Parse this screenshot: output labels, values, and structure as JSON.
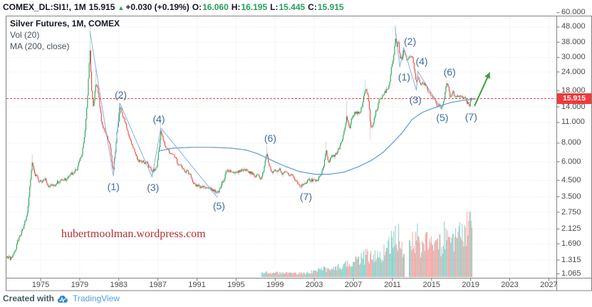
{
  "header": {
    "symbol": "COMEX_DL:SI1!,",
    "interval": "1M",
    "last": "15.915",
    "direction_icon": "▲",
    "change": "+0.030 (+0.19%)",
    "open_label": "O:",
    "open": "16.060",
    "high_label": "H:",
    "high": "16.195",
    "low_label": "L:",
    "low": "15.445",
    "close_label": "C:",
    "close": "15.915"
  },
  "legend": {
    "title": "Silver Futures, 1M, COMEX",
    "indicator_volume": "Vol (20)",
    "indicator_ma": "MA (200, close)"
  },
  "watermark": "hubertmoolman.wordpress.com",
  "attribution": {
    "prefix": "Created with",
    "brand": "TradingView"
  },
  "price_axis_badge": "15.915",
  "colors": {
    "up": "#26a152",
    "down": "#e64a45",
    "up_wick": "#7fc49b",
    "down_wick": "#f0a5a2",
    "volume_up": "#26a69a",
    "volume_down": "#ef5350",
    "ma_line": "#5b9bd4",
    "trend_line": "#8ab0dd",
    "wave_label": "#3e6d9c",
    "price_line": "#ef3a3e",
    "arrow": "#3f9e3c",
    "grid": "#dde9f3",
    "frame": "#828282"
  },
  "chart_data": {
    "type": "candlestick",
    "title": "Silver Futures, 1M, COMEX",
    "scale": "log",
    "x_domain": [
      1971.5,
      2027.7
    ],
    "y_domain": [
      1.0,
      56.6
    ],
    "x_ticks": [
      1975,
      1979,
      1983,
      1987,
      1991,
      1995,
      1999,
      2003,
      2007,
      2011,
      2015,
      2019,
      2023,
      2027
    ],
    "y_ticks": [
      60,
      48,
      38,
      30,
      24,
      18,
      14,
      11,
      8,
      6,
      4.5,
      3.5,
      2.75,
      2.125,
      1.69,
      1.315,
      1.065
    ],
    "y_tick_labels": [
      "60.000",
      "48.000",
      "38.000",
      "30.000",
      "24.000",
      "18.000",
      "14.000",
      "11.000",
      "8.000",
      "6.000",
      "4.500",
      "3.500",
      "2.750",
      "2.125",
      "1.690",
      "1.315",
      "1.065"
    ],
    "start_year": 1971.55,
    "end_year": 2019.13,
    "current_price": 15.915,
    "last_candle": {
      "o": 16.06,
      "h": 16.195,
      "l": 15.445,
      "c": 15.915
    },
    "anchors": [
      [
        1971.4,
        1.38
      ],
      [
        1971.9,
        1.32
      ],
      [
        1972.4,
        1.6
      ],
      [
        1973.0,
        1.98
      ],
      [
        1973.6,
        2.6
      ],
      [
        1974.15,
        5.9
      ],
      [
        1974.5,
        4.9
      ],
      [
        1974.9,
        4.35
      ],
      [
        1975.4,
        4.5
      ],
      [
        1975.9,
        4.2
      ],
      [
        1976.4,
        4.3
      ],
      [
        1977.0,
        4.45
      ],
      [
        1977.6,
        4.6
      ],
      [
        1978.2,
        5.0
      ],
      [
        1978.8,
        5.6
      ],
      [
        1979.2,
        6.9
      ],
      [
        1979.5,
        8.8
      ],
      [
        1979.75,
        14
      ],
      [
        1979.95,
        26
      ],
      [
        1980.04,
        36
      ],
      [
        1980.2,
        19
      ],
      [
        1980.4,
        13.5
      ],
      [
        1980.65,
        20.5
      ],
      [
        1980.9,
        17
      ],
      [
        1981.2,
        11.5
      ],
      [
        1981.6,
        9.2
      ],
      [
        1982.0,
        8.1
      ],
      [
        1982.45,
        5.2
      ],
      [
        1982.8,
        9.3
      ],
      [
        1983.1,
        13.8
      ],
      [
        1983.5,
        11.8
      ],
      [
        1984.0,
        9.2
      ],
      [
        1984.5,
        7.6
      ],
      [
        1985.0,
        6.2
      ],
      [
        1985.5,
        6.2
      ],
      [
        1986.0,
        5.6
      ],
      [
        1986.4,
        5.15
      ],
      [
        1986.9,
        5.5
      ],
      [
        1987.3,
        9.3
      ],
      [
        1987.8,
        7.3
      ],
      [
        1988.4,
        6.5
      ],
      [
        1989.0,
        5.9
      ],
      [
        1989.6,
        5.4
      ],
      [
        1990.2,
        5.0
      ],
      [
        1990.8,
        4.2
      ],
      [
        1991.4,
        4.0
      ],
      [
        1992.0,
        4.1
      ],
      [
        1992.6,
        3.9
      ],
      [
        1993.1,
        3.62
      ],
      [
        1993.6,
        4.4
      ],
      [
        1994.1,
        5.2
      ],
      [
        1994.7,
        5.3
      ],
      [
        1995.3,
        5.2
      ],
      [
        1995.9,
        5.3
      ],
      [
        1996.4,
        5.1
      ],
      [
        1997.0,
        4.8
      ],
      [
        1997.5,
        4.6
      ],
      [
        1997.9,
        5.7
      ],
      [
        1998.1,
        6.7
      ],
      [
        1998.5,
        5.4
      ],
      [
        1999.0,
        5.25
      ],
      [
        1999.5,
        5.3
      ],
      [
        2000.0,
        5.1
      ],
      [
        2000.5,
        4.9
      ],
      [
        2001.0,
        4.5
      ],
      [
        2001.5,
        4.3
      ],
      [
        2001.9,
        4.2
      ],
      [
        2002.4,
        4.6
      ],
      [
        2002.9,
        4.5
      ],
      [
        2003.4,
        4.7
      ],
      [
        2003.9,
        5.3
      ],
      [
        2004.2,
        6.9
      ],
      [
        2004.5,
        5.9
      ],
      [
        2004.9,
        6.6
      ],
      [
        2005.4,
        7.0
      ],
      [
        2005.9,
        8.3
      ],
      [
        2006.3,
        11.8
      ],
      [
        2006.6,
        10.3
      ],
      [
        2007.0,
        12.9
      ],
      [
        2007.5,
        12.6
      ],
      [
        2007.9,
        14.3
      ],
      [
        2008.2,
        18.5
      ],
      [
        2008.5,
        17
      ],
      [
        2008.75,
        10.8
      ],
      [
        2008.95,
        10.2
      ],
      [
        2009.3,
        12.8
      ],
      [
        2009.8,
        16.3
      ],
      [
        2010.2,
        17.8
      ],
      [
        2010.6,
        18.8
      ],
      [
        2010.9,
        26
      ],
      [
        2011.1,
        30.5
      ],
      [
        2011.28,
        42
      ],
      [
        2011.45,
        36
      ],
      [
        2011.6,
        39.5
      ],
      [
        2011.75,
        30
      ],
      [
        2012.0,
        30
      ],
      [
        2012.15,
        34
      ],
      [
        2012.5,
        27.8
      ],
      [
        2012.85,
        32
      ],
      [
        2013.1,
        29.5
      ],
      [
        2013.3,
        23
      ],
      [
        2013.45,
        19.7
      ],
      [
        2013.6,
        22.8
      ],
      [
        2013.9,
        20.3
      ],
      [
        2014.3,
        19.8
      ],
      [
        2014.7,
        17.3
      ],
      [
        2014.95,
        15.8
      ],
      [
        2015.3,
        16.3
      ],
      [
        2015.6,
        14.8
      ],
      [
        2015.95,
        14.0
      ],
      [
        2016.2,
        15.4
      ],
      [
        2016.55,
        19.8
      ],
      [
        2016.9,
        16.4
      ],
      [
        2017.2,
        17.4
      ],
      [
        2017.5,
        16.3
      ],
      [
        2017.8,
        16.9
      ],
      [
        2018.1,
        16.4
      ],
      [
        2018.5,
        15.4
      ],
      [
        2018.85,
        14.3
      ],
      [
        2019.12,
        15.9
      ]
    ],
    "spikes_high": [
      [
        1974.15,
        6.76
      ],
      [
        1980.04,
        49.45
      ],
      [
        1980.65,
        25.0
      ],
      [
        1983.1,
        14.72
      ],
      [
        1987.3,
        11.25
      ],
      [
        1998.1,
        7.81
      ],
      [
        2004.2,
        8.2
      ],
      [
        2006.3,
        15.2
      ],
      [
        2008.2,
        21.35
      ],
      [
        2011.28,
        49.82
      ],
      [
        2012.15,
        35.6
      ],
      [
        2016.55,
        21.13
      ]
    ],
    "spikes_low": [
      [
        1971.9,
        1.28
      ],
      [
        1982.45,
        4.88
      ],
      [
        1986.4,
        4.85
      ],
      [
        1993.1,
        3.51
      ],
      [
        2001.9,
        4.03
      ],
      [
        2008.75,
        8.4
      ],
      [
        2013.45,
        18.17
      ],
      [
        2015.95,
        13.62
      ],
      [
        2018.85,
        13.86
      ]
    ],
    "ma_points": [
      [
        1987.2,
        7.1
      ],
      [
        1988.5,
        7.4
      ],
      [
        1990.5,
        7.5
      ],
      [
        1992.5,
        7.5
      ],
      [
        1994.5,
        7.4
      ],
      [
        1996.0,
        7.2
      ],
      [
        1997.2,
        6.8
      ],
      [
        1998.5,
        6.2
      ],
      [
        2000.0,
        5.6
      ],
      [
        2001.5,
        5.15
      ],
      [
        2003.0,
        4.95
      ],
      [
        2004.5,
        4.95
      ],
      [
        2006.0,
        5.1
      ],
      [
        2007.5,
        5.55
      ],
      [
        2008.8,
        6.1
      ],
      [
        2010.0,
        6.9
      ],
      [
        2011.0,
        8.0
      ],
      [
        2012.0,
        9.4
      ],
      [
        2013.0,
        11.5
      ],
      [
        2014.0,
        12.8
      ],
      [
        2015.0,
        13.6
      ],
      [
        2016.0,
        14.3
      ],
      [
        2017.0,
        15.0
      ],
      [
        2018.0,
        15.4
      ],
      [
        2019.3,
        15.8
      ],
      [
        2019.6,
        15.85
      ]
    ],
    "volume": {
      "start": 1997.6,
      "gap": [
        2012.25,
        2012.7
      ],
      "anchors": [
        [
          1997.6,
          5
        ],
        [
          1998.3,
          7
        ],
        [
          1999,
          6
        ],
        [
          2000,
          5.5
        ],
        [
          2001,
          5
        ],
        [
          2002,
          6
        ],
        [
          2003,
          8
        ],
        [
          2004,
          12
        ],
        [
          2004.8,
          11
        ],
        [
          2005.5,
          14
        ],
        [
          2006,
          19
        ],
        [
          2006.8,
          22
        ],
        [
          2007.5,
          25
        ],
        [
          2008.3,
          33
        ],
        [
          2008.9,
          28
        ],
        [
          2009.5,
          30
        ],
        [
          2010.3,
          36
        ],
        [
          2010.9,
          52
        ],
        [
          2011.3,
          88
        ],
        [
          2011.6,
          62
        ],
        [
          2011.9,
          45
        ],
        [
          2012.15,
          40
        ],
        [
          2013.0,
          52
        ],
        [
          2013.5,
          58
        ],
        [
          2014,
          48
        ],
        [
          2014.7,
          50
        ],
        [
          2015.3,
          44
        ],
        [
          2015.9,
          46
        ],
        [
          2016.3,
          58
        ],
        [
          2016.8,
          52
        ],
        [
          2017.3,
          54
        ],
        [
          2017.8,
          58
        ],
        [
          2018.2,
          68
        ],
        [
          2018.6,
          78
        ],
        [
          2018.9,
          82
        ],
        [
          2019.1,
          60
        ]
      ]
    },
    "waves": {
      "primary": [
        {
          "label": "(1)",
          "year": 1982.45,
          "price": 4.88,
          "label_pos": [
            1982.45,
            4.1
          ]
        },
        {
          "label": "(2)",
          "year": 1983.1,
          "price": 14.72,
          "label_pos": [
            1983.2,
            16.9
          ]
        },
        {
          "label": "(3)",
          "year": 1986.4,
          "price": 4.85,
          "label_pos": [
            1986.5,
            4.05
          ]
        },
        {
          "label": "(4)",
          "year": 1987.3,
          "price": 11.25,
          "label_pos": [
            1987.1,
            11.6
          ]
        },
        {
          "label": "(5)",
          "year": 1993.1,
          "price": 3.51,
          "label_pos": [
            1993.25,
            3.03
          ]
        },
        {
          "label": "(6)",
          "year": 1998.1,
          "price": 7.81,
          "label_pos": [
            1998.5,
            8.6
          ]
        },
        {
          "label": "(7)",
          "year": 2001.9,
          "price": 4.03,
          "label_pos": [
            2002.15,
            3.5
          ]
        }
      ],
      "secondary": [
        {
          "label": "(1)",
          "year": 2011.75,
          "price": 26.1,
          "label_pos": [
            2012.2,
            22.3
          ]
        },
        {
          "label": "(2)",
          "year": 2012.15,
          "price": 35.6,
          "label_pos": [
            2012.8,
            38.5
          ]
        },
        {
          "label": "(3)",
          "year": 2013.45,
          "price": 18.17,
          "label_pos": [
            2013.35,
            15.7
          ]
        },
        {
          "label": "(4)",
          "year": 2013.6,
          "price": 24.5,
          "label_pos": [
            2014.0,
            28.2
          ]
        },
        {
          "label": "(5)",
          "year": 2015.95,
          "price": 13.62,
          "label_pos": [
            2016.1,
            11.9
          ]
        },
        {
          "label": "(6)",
          "year": 2016.55,
          "price": 21.13,
          "label_pos": [
            2016.85,
            24.0
          ]
        },
        {
          "label": "(7)",
          "year": 2018.85,
          "price": 13.86,
          "label_pos": [
            2019.05,
            12.05
          ]
        }
      ]
    },
    "trend_lines": [
      [
        [
          1980.04,
          45
        ],
        [
          1982.45,
          4.8
        ],
        [
          1983.1,
          14.9
        ],
        [
          1986.4,
          4.75
        ],
        [
          1987.3,
          10.1
        ],
        [
          1993.1,
          3.45
        ]
      ],
      [
        [
          2011.28,
          48
        ],
        [
          2011.75,
          25.9
        ],
        [
          2012.15,
          34.9
        ],
        [
          2013.45,
          18.1
        ],
        [
          2013.6,
          24.2
        ],
        [
          2015.95,
          13.7
        ]
      ]
    ],
    "arrow": {
      "from": [
        2019.4,
        14.2
      ],
      "to": [
        2020.95,
        23.8
      ]
    }
  }
}
